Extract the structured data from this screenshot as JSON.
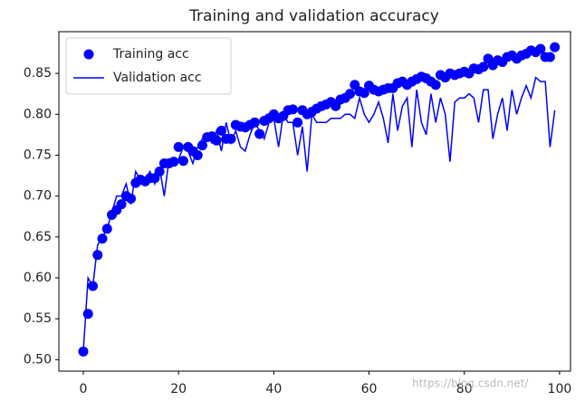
{
  "chart_data": {
    "type": "line",
    "title": "Training and validation accuracy",
    "x": [
      0,
      1,
      2,
      3,
      4,
      5,
      6,
      7,
      8,
      9,
      10,
      11,
      12,
      13,
      14,
      15,
      16,
      17,
      18,
      19,
      20,
      21,
      22,
      23,
      24,
      25,
      26,
      27,
      28,
      29,
      30,
      31,
      32,
      33,
      34,
      35,
      36,
      37,
      38,
      39,
      40,
      41,
      42,
      43,
      44,
      45,
      46,
      47,
      48,
      49,
      50,
      51,
      52,
      53,
      54,
      55,
      56,
      57,
      58,
      59,
      60,
      61,
      62,
      63,
      64,
      65,
      66,
      67,
      68,
      69,
      70,
      71,
      72,
      73,
      74,
      75,
      76,
      77,
      78,
      79,
      80,
      81,
      82,
      83,
      84,
      85,
      86,
      87,
      88,
      89,
      90,
      91,
      92,
      93,
      94,
      95,
      96,
      97,
      98,
      99
    ],
    "series": [
      {
        "name": "Training acc",
        "color": "#0000ff",
        "style": "dots",
        "values": [
          0.51,
          0.556,
          0.59,
          0.628,
          0.648,
          0.66,
          0.677,
          0.683,
          0.69,
          0.7,
          0.697,
          0.716,
          0.72,
          0.718,
          0.722,
          0.722,
          0.73,
          0.74,
          0.74,
          0.742,
          0.76,
          0.743,
          0.76,
          0.755,
          0.75,
          0.762,
          0.772,
          0.773,
          0.768,
          0.78,
          0.77,
          0.77,
          0.787,
          0.785,
          0.784,
          0.787,
          0.79,
          0.776,
          0.792,
          0.795,
          0.8,
          0.795,
          0.798,
          0.805,
          0.806,
          0.79,
          0.805,
          0.8,
          0.803,
          0.807,
          0.81,
          0.812,
          0.815,
          0.81,
          0.818,
          0.82,
          0.825,
          0.836,
          0.828,
          0.826,
          0.835,
          0.83,
          0.828,
          0.83,
          0.832,
          0.832,
          0.838,
          0.84,
          0.836,
          0.84,
          0.843,
          0.846,
          0.844,
          0.84,
          0.836,
          0.848,
          0.845,
          0.85,
          0.848,
          0.85,
          0.852,
          0.85,
          0.856,
          0.855,
          0.858,
          0.868,
          0.86,
          0.866,
          0.864,
          0.87,
          0.872,
          0.868,
          0.872,
          0.874,
          0.878,
          0.876,
          0.88,
          0.87,
          0.87,
          0.882
        ]
      },
      {
        "name": "Validation acc",
        "color": "#0000ff",
        "style": "line",
        "values": [
          0.51,
          0.6,
          0.59,
          0.64,
          0.65,
          0.66,
          0.68,
          0.7,
          0.7,
          0.715,
          0.69,
          0.73,
          0.72,
          0.72,
          0.73,
          0.715,
          0.735,
          0.7,
          0.745,
          0.74,
          0.745,
          0.76,
          0.755,
          0.74,
          0.76,
          0.77,
          0.775,
          0.765,
          0.78,
          0.755,
          0.79,
          0.765,
          0.78,
          0.76,
          0.755,
          0.775,
          0.79,
          0.78,
          0.77,
          0.79,
          0.795,
          0.76,
          0.8,
          0.79,
          0.79,
          0.75,
          0.785,
          0.73,
          0.8,
          0.79,
          0.79,
          0.79,
          0.795,
          0.795,
          0.795,
          0.8,
          0.8,
          0.795,
          0.82,
          0.8,
          0.79,
          0.8,
          0.815,
          0.795,
          0.765,
          0.825,
          0.78,
          0.81,
          0.82,
          0.76,
          0.83,
          0.79,
          0.775,
          0.825,
          0.79,
          0.82,
          0.8,
          0.742,
          0.815,
          0.82,
          0.82,
          0.825,
          0.82,
          0.79,
          0.83,
          0.83,
          0.77,
          0.8,
          0.82,
          0.78,
          0.83,
          0.8,
          0.82,
          0.835,
          0.82,
          0.845,
          0.84,
          0.84,
          0.76,
          0.805
        ]
      }
    ],
    "xlim": [
      -5.13,
      102.3
    ],
    "ylim": [
      0.486,
      0.901
    ],
    "xticks": [
      0,
      20,
      40,
      60,
      80,
      100
    ],
    "yticks": [
      {
        "value": 0.5,
        "label": "0.50"
      },
      0.55,
      {
        "value": 0.6,
        "label": "0.60"
      },
      0.65,
      {
        "value": 0.7,
        "label": "0.70"
      },
      0.75,
      {
        "value": 0.8,
        "label": "0.80"
      },
      0.85
    ],
    "legend": "upper left",
    "watermark": "https://blog.csdn.net/"
  }
}
